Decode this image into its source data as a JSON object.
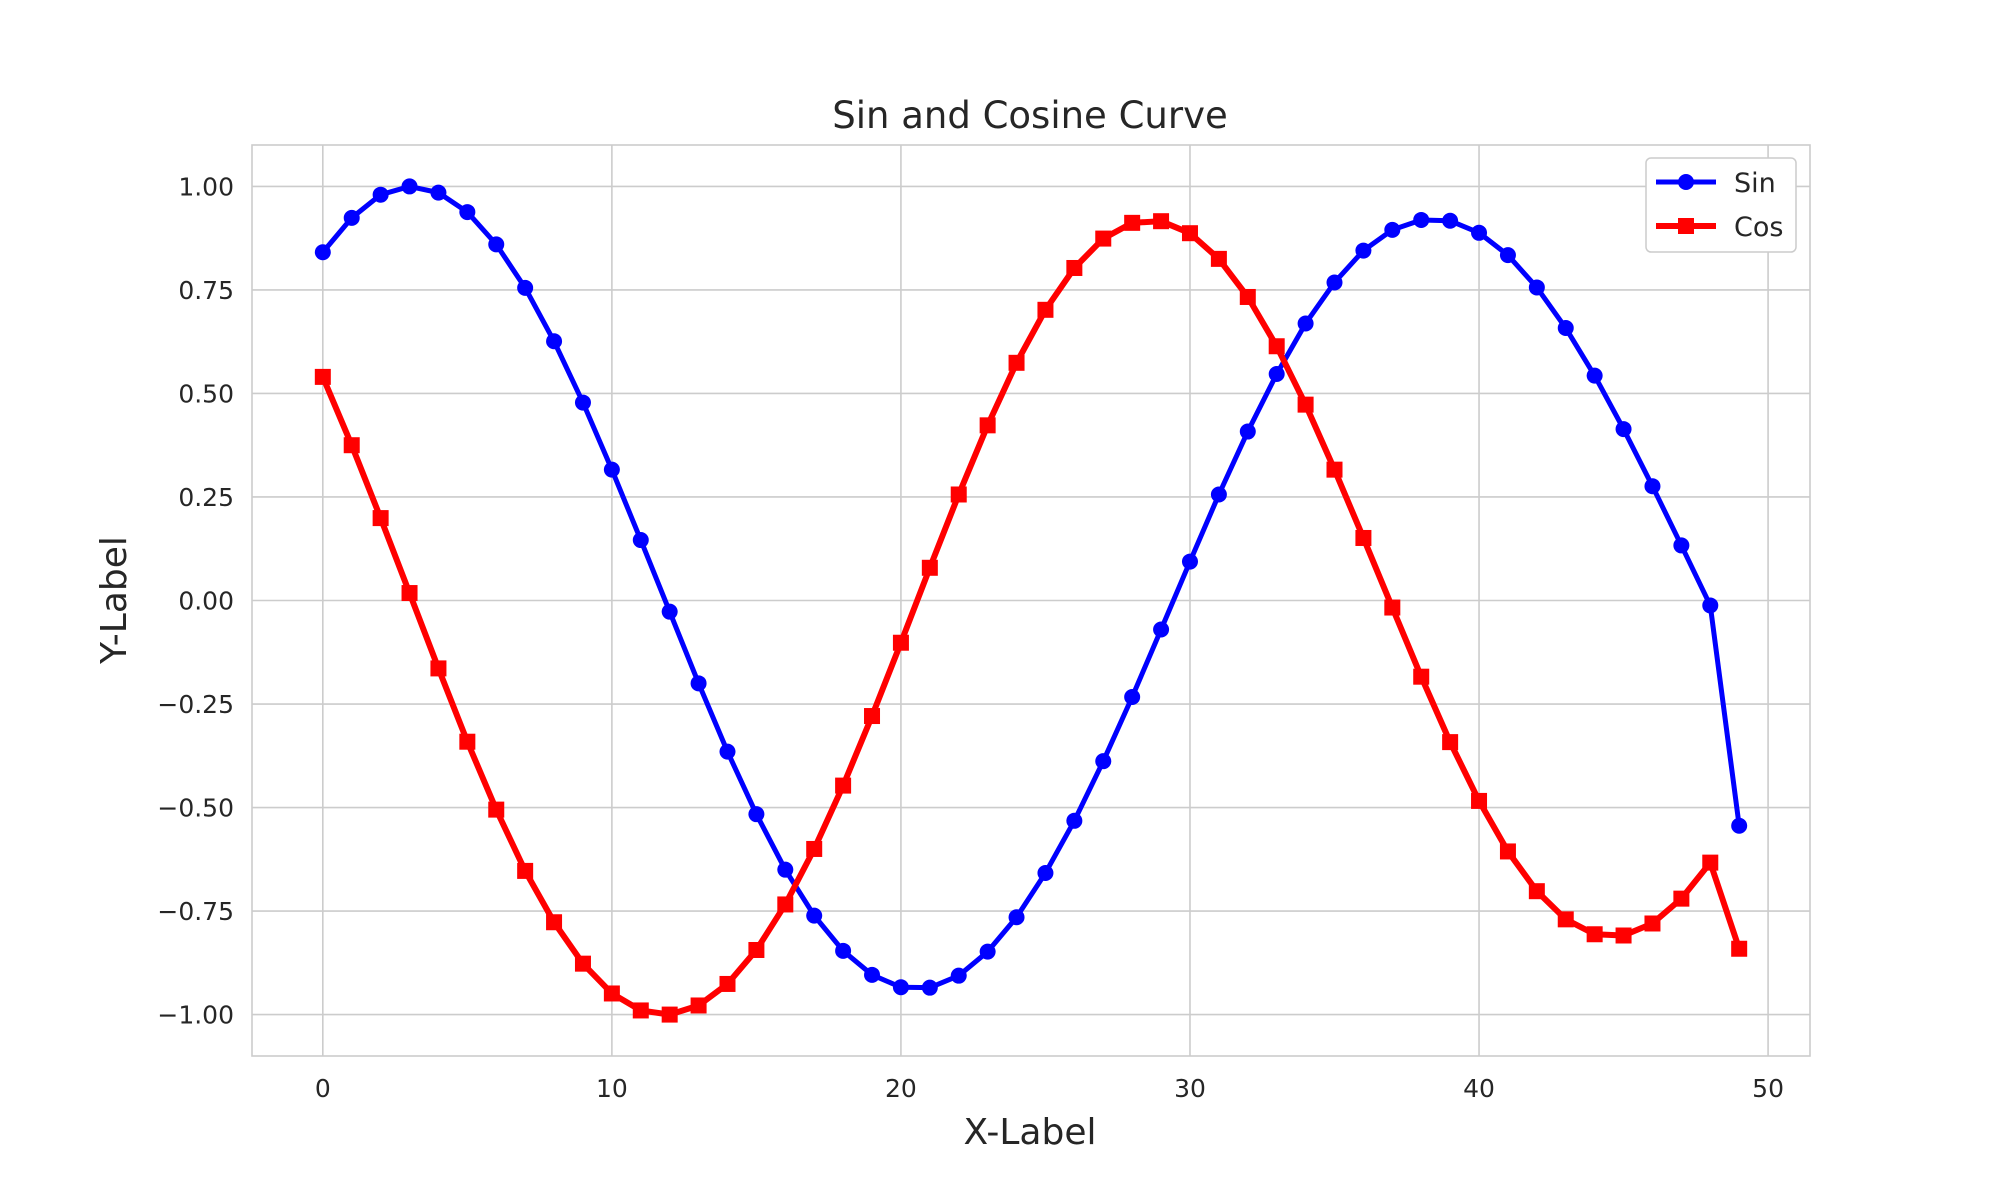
{
  "chart_data": {
    "type": "line",
    "title": "Sin and Cosine Curve",
    "xlabel": "X-Label",
    "ylabel": "Y-Label",
    "xlim": [
      -2.45,
      51.45
    ],
    "ylim": [
      -1.1,
      1.1
    ],
    "xticks": [
      0,
      10,
      20,
      30,
      40,
      50
    ],
    "xtick_labels": [
      "0",
      "10",
      "20",
      "30",
      "40",
      "50"
    ],
    "yticks": [
      1.0,
      0.75,
      0.5,
      0.25,
      0.0,
      -0.25,
      -0.5,
      -0.75,
      -1.0
    ],
    "ytick_labels": [
      "1.00",
      "0.75",
      "0.50",
      "0.25",
      "0.00",
      "−0.25",
      "−0.50",
      "−0.75",
      "−1.00"
    ],
    "grid": true,
    "legend_position": "top-right",
    "x": [
      0,
      1,
      2,
      3,
      4,
      5,
      6,
      7,
      8,
      9,
      10,
      11,
      12,
      13,
      14,
      15,
      16,
      17,
      18,
      19,
      20,
      21,
      22,
      23,
      24,
      25,
      26,
      27,
      28,
      29,
      30,
      31,
      32,
      33,
      34,
      35,
      36,
      37,
      38,
      39,
      40,
      41,
      42,
      43,
      44,
      45,
      46,
      47,
      48,
      49
    ],
    "series": [
      {
        "name": "Sin",
        "color": "#0000ff",
        "marker": "circle",
        "values": [
          0.841,
          0.924,
          0.98,
          1.0,
          0.985,
          0.938,
          0.86,
          0.755,
          0.626,
          0.478,
          0.316,
          0.146,
          -0.027,
          -0.2,
          -0.365,
          -0.516,
          -0.65,
          -0.761,
          -0.846,
          -0.904,
          -0.934,
          -0.935,
          -0.906,
          -0.848,
          -0.765,
          -0.658,
          -0.532,
          -0.388,
          -0.233,
          -0.07,
          0.094,
          0.256,
          0.408,
          0.547,
          0.669,
          0.768,
          0.845,
          0.895,
          0.919,
          0.917,
          0.888,
          0.834,
          0.756,
          0.658,
          0.543,
          0.414,
          0.276,
          0.133,
          -0.012,
          -0.544
        ]
      },
      {
        "name": "Cos",
        "color": "#ff0000",
        "marker": "square",
        "values": [
          0.54,
          0.375,
          0.199,
          0.018,
          -0.164,
          -0.341,
          -0.505,
          -0.653,
          -0.777,
          -0.877,
          -0.949,
          -0.99,
          -1.0,
          -0.978,
          -0.926,
          -0.844,
          -0.734,
          -0.6,
          -0.447,
          -0.279,
          -0.102,
          0.079,
          0.256,
          0.423,
          0.574,
          0.702,
          0.803,
          0.874,
          0.912,
          0.916,
          0.887,
          0.825,
          0.733,
          0.614,
          0.473,
          0.316,
          0.151,
          -0.017,
          -0.184,
          -0.342,
          -0.484,
          -0.606,
          -0.702,
          -0.77,
          -0.806,
          -0.809,
          -0.78,
          -0.72,
          -0.633,
          -0.841
        ]
      }
    ]
  }
}
